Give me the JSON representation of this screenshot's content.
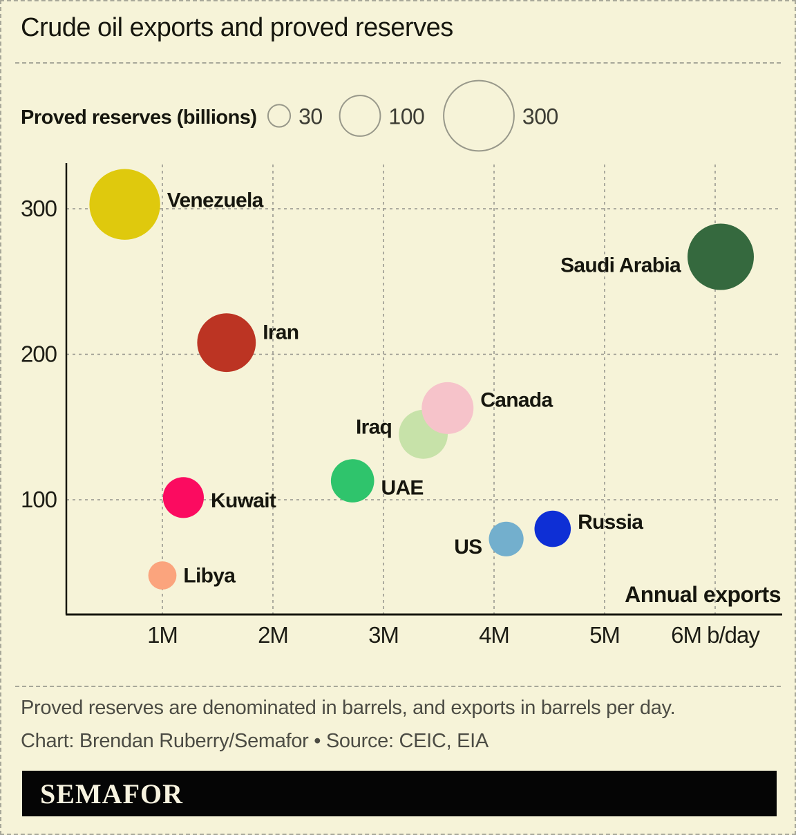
{
  "page": {
    "title": "Crude oil exports and proved reserves",
    "background_color": "#f6f3d8",
    "border_color": "#a7a799",
    "footnote_line1": "Proved reserves are denominated in barrels, and exports in barrels per day.",
    "footnote_line2": "Chart: Brendan Ruberry/Semafor • Source: CEIC, EIA",
    "logo_text": "SEMAFOR"
  },
  "legend": {
    "label": "Proved reserves (billions)",
    "sizes": [
      30,
      100,
      300
    ],
    "circle_outline_color": "#98988a"
  },
  "chart_data": {
    "type": "scatter",
    "subtype": "bubble",
    "title": "Crude oil exports and proved reserves",
    "x_axis": {
      "label": "Annual exports",
      "tick_values": [
        1,
        2,
        3,
        4,
        5,
        6
      ],
      "tick_labels": [
        "1M",
        "2M",
        "3M",
        "4M",
        "5M",
        "6M b/day"
      ],
      "units": "million barrels per day",
      "range_shown": [
        0.13,
        6.6
      ]
    },
    "y_axis": {
      "label": "Proved reserves (billions of barrels)",
      "tick_values": [
        300,
        200,
        100
      ],
      "range_shown": [
        22,
        330
      ]
    },
    "bubble_size_encoding": "area proportional to proved reserves (billions of barrels); legend circles = 30, 100, 300",
    "grid": "dashed gray, both directions",
    "series": [
      {
        "country": "Venezuela",
        "exports_m_bpd": 0.66,
        "reserves_b": 303,
        "color": "#dfc90d",
        "label_side": "right",
        "label_dy": -6
      },
      {
        "country": "Iran",
        "exports_m_bpd": 1.58,
        "reserves_b": 208,
        "color": "#bc3423",
        "label_side": "right",
        "label_dy": -15
      },
      {
        "country": "Kuwait",
        "exports_m_bpd": 1.19,
        "reserves_b": 101.5,
        "color": "#fb0b60",
        "label_side": "right",
        "label_dy": 4
      },
      {
        "country": "Libya",
        "exports_m_bpd": 1.0,
        "reserves_b": 48,
        "color": "#fba47d",
        "label_side": "right",
        "label_dy": 0
      },
      {
        "country": "UAE",
        "exports_m_bpd": 2.72,
        "reserves_b": 113,
        "color": "#2fc46c",
        "label_side": "right",
        "label_dy": 10
      },
      {
        "country": "Iraq",
        "exports_m_bpd": 3.36,
        "reserves_b": 145,
        "color": "#c7e2a9",
        "label_side": "left",
        "label_dy": -11
      },
      {
        "country": "Canada",
        "exports_m_bpd": 3.58,
        "reserves_b": 163,
        "color": "#f6c3ca",
        "label_side": "right",
        "label_dy": -12
      },
      {
        "country": "US",
        "exports_m_bpd": 4.11,
        "reserves_b": 73,
        "color": "#73afcd",
        "label_side": "left",
        "label_dy": 11
      },
      {
        "country": "Russia",
        "exports_m_bpd": 4.53,
        "reserves_b": 80,
        "color": "#0e2fd5",
        "label_side": "right",
        "label_dy": -10
      },
      {
        "country": "Saudi Arabia",
        "exports_m_bpd": 6.05,
        "reserves_b": 267,
        "color": "#35693e",
        "label_side": "left",
        "label_dy": 12
      }
    ]
  }
}
